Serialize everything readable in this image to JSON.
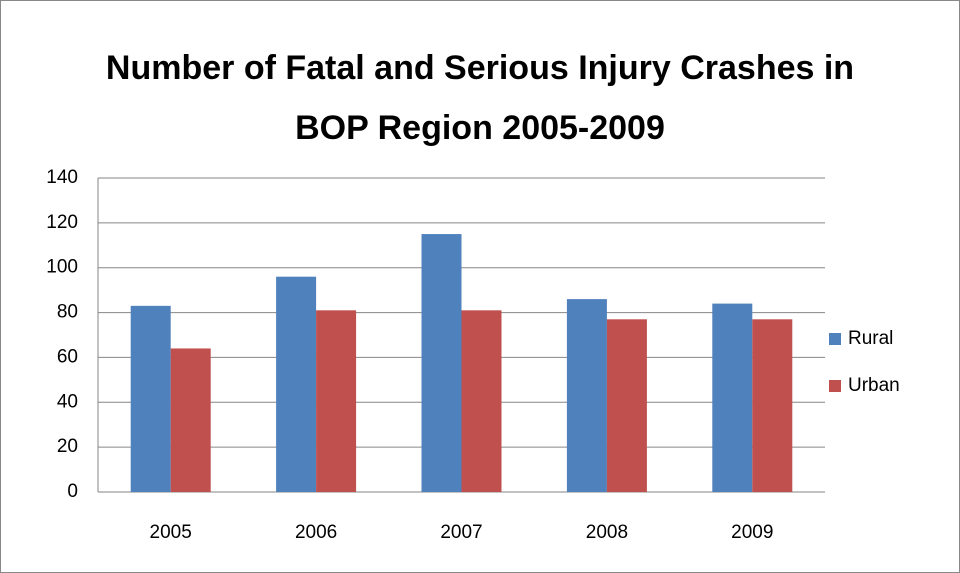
{
  "chart_data": {
    "type": "bar",
    "title": "Number of Fatal and Serious Injury Crashes in BOP Region 2005-2009",
    "categories": [
      "2005",
      "2006",
      "2007",
      "2008",
      "2009"
    ],
    "series": [
      {
        "name": "Rural",
        "color": "#4f81bd",
        "values": [
          83,
          96,
          115,
          86,
          84
        ]
      },
      {
        "name": "Urban",
        "color": "#c0504d",
        "values": [
          64,
          81,
          81,
          77,
          77
        ]
      }
    ],
    "ylim": [
      0,
      140
    ],
    "yticks": [
      0,
      20,
      40,
      60,
      80,
      100,
      120,
      140
    ],
    "grid": true,
    "legend": "right"
  }
}
